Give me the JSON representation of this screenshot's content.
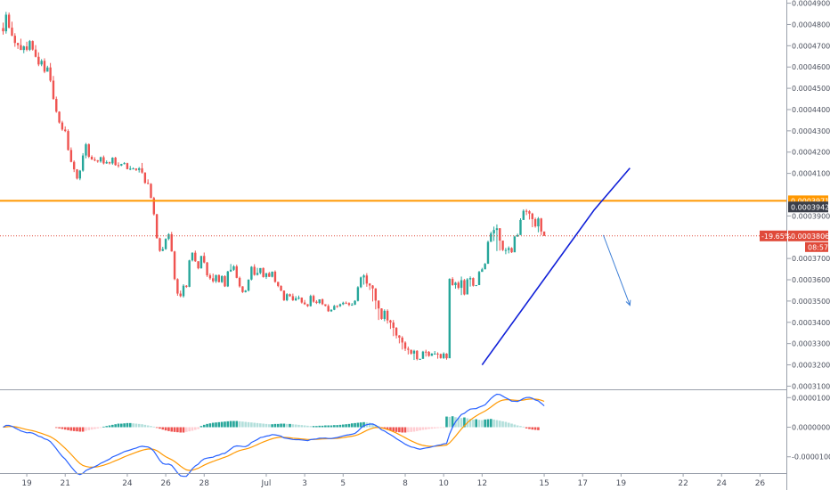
{
  "chart_data": {
    "type": "candlestick",
    "y_axis": {
      "range": [
        0.0003085,
        0.0004915
      ],
      "ticks": [
        "0.00049000",
        "0.00048000",
        "0.00047000",
        "0.00046000",
        "0.00045000",
        "0.00044000",
        "0.00043000",
        "0.00042000",
        "0.00041000",
        "0.00039000",
        "0.00037000",
        "0.00036000",
        "0.00035000",
        "0.00034000",
        "0.00033000",
        "0.00032000",
        "0.00031000"
      ],
      "tick_values": [
        0.00049,
        0.00048,
        0.00047,
        0.00046,
        0.00045,
        0.00044,
        0.00043,
        0.00042,
        0.00041,
        0.00039,
        0.00037,
        0.00036,
        0.00035,
        0.00034,
        0.00033,
        0.00032,
        0.00031
      ]
    },
    "x_axis": {
      "ticks": [
        "19",
        "21",
        "24",
        "26",
        "28",
        "Jul",
        "3",
        "5",
        "8",
        "10",
        "12",
        "15",
        "17",
        "19",
        "22",
        "24",
        "26"
      ],
      "tick_bars": [
        8,
        21,
        42,
        55,
        68,
        89,
        102,
        115,
        136,
        149,
        162,
        183,
        196,
        209,
        230,
        243,
        256
      ]
    },
    "candles": {
      "o": [
        0.0004783,
        0.0004768,
        0.0004846,
        0.0004785,
        0.0004747,
        0.0004713,
        0.0004703,
        0.000468,
        0.0004697,
        0.0004681,
        0.0004722,
        0.0004682,
        0.0004648,
        0.0004612,
        0.0004629,
        0.0004578,
        0.0004598,
        0.0004536,
        0.000445,
        0.000439,
        0.0004339,
        0.0004306,
        0.0004299,
        0.000421,
        0.0004154,
        0.0004119,
        0.0004076,
        0.0004113,
        0.0004184,
        0.0004237,
        0.0004178,
        0.0004165,
        0.0004161,
        0.0004156,
        0.0004176,
        0.0004147,
        0.0004153,
        0.0004147,
        0.0004174,
        0.0004139,
        0.0004137,
        0.0004144,
        0.0004148,
        0.000412,
        0.0004122,
        0.0004123,
        0.0004116,
        0.0004124,
        0.0004104,
        0.0004055,
        0.0004051,
        0.0003984,
        0.0003908,
        0.0003795,
        0.0003736,
        0.0003744,
        0.0003792,
        0.0003814,
        0.0003733,
        0.0003603,
        0.0003535,
        0.0003523,
        0.0003572,
        0.0003567,
        0.0003691,
        0.0003727,
        0.0003687,
        0.0003654,
        0.0003712,
        0.0003681,
        0.0003621,
        0.0003607,
        0.0003593,
        0.0003622,
        0.0003589,
        0.0003617,
        0.0003569,
        0.0003639,
        0.0003647,
        0.0003663,
        0.0003609,
        0.0003569,
        0.0003542,
        0.0003549,
        0.0003601,
        0.0003661,
        0.0003623,
        0.0003632,
        0.0003655,
        0.0003613,
        0.0003631,
        0.0003614,
        0.0003638,
        0.000359,
        0.0003571,
        0.0003549,
        0.0003504,
        0.0003532,
        0.0003523,
        0.0003504,
        0.0003513,
        0.0003516,
        0.0003493,
        0.0003485,
        0.0003476,
        0.0003524,
        0.0003497,
        0.0003491,
        0.0003508,
        0.0003485,
        0.0003477,
        0.0003452,
        0.0003459,
        0.0003477,
        0.0003476,
        0.0003485,
        0.0003492,
        0.000349,
        0.0003482,
        0.0003483,
        0.0003501,
        0.0003565,
        0.0003611,
        0.000362,
        0.0003582,
        0.0003573,
        0.0003559,
        0.0003502,
        0.0003465,
        0.0003416,
        0.0003454,
        0.0003409,
        0.0003399,
        0.0003374,
        0.0003338,
        0.0003328,
        0.0003305,
        0.0003276,
        0.0003271,
        0.0003253,
        0.0003266,
        0.0003227,
        0.0003228,
        0.0003262,
        0.0003261,
        0.0003242,
        0.0003253,
        0.0003253,
        0.0003251,
        0.0003232,
        0.0003253,
        0.0003231,
        0.0003604,
        0.0003575,
        0.0003586,
        0.0003562,
        0.0003598,
        0.0003531,
        0.0003602,
        0.0003608,
        0.0003572,
        0.0003575,
        0.0003637,
        0.0003649,
        0.0003675,
        0.0003778,
        0.0003818,
        0.0003834,
        0.0003842,
        0.0003784,
        0.000374,
        0.000374,
        0.0003749,
        0.0003729,
        0.0003803,
        0.000381,
        0.0003881,
        0.0003924,
        0.0003922,
        0.0003911,
        0.0003885,
        0.0003851,
        0.0003888,
        0.0003827
      ],
      "h": [
        0.0004809,
        0.0004859,
        0.0004856,
        0.0004813,
        0.0004759,
        0.0004714,
        0.0004733,
        0.0004701,
        0.0004719,
        0.0004727,
        0.0004725,
        0.0004703,
        0.0004669,
        0.0004637,
        0.0004641,
        0.0004606,
        0.0004619,
        0.0004558,
        0.0004461,
        0.0004392,
        0.0004347,
        0.0004321,
        0.0004307,
        0.0004222,
        0.0004161,
        0.000412,
        0.0004116,
        0.0004195,
        0.0004243,
        0.0004241,
        0.0004185,
        0.0004176,
        0.0004163,
        0.0004179,
        0.0004184,
        0.0004161,
        0.0004155,
        0.0004176,
        0.0004178,
        0.0004152,
        0.0004145,
        0.0004153,
        0.000415,
        0.0004135,
        0.0004128,
        0.0004124,
        0.000413,
        0.0004149,
        0.0004105,
        0.0004072,
        0.0004054,
        0.000399,
        0.000391,
        0.0003798,
        0.0003755,
        0.0003795,
        0.0003819,
        0.0003825,
        0.0003736,
        0.0003607,
        0.0003549,
        0.0003579,
        0.0003575,
        0.0003694,
        0.0003729,
        0.0003737,
        0.0003687,
        0.0003712,
        0.0003728,
        0.0003684,
        0.000363,
        0.0003629,
        0.0003624,
        0.0003625,
        0.0003621,
        0.0003621,
        0.0003642,
        0.0003674,
        0.0003669,
        0.0003671,
        0.0003615,
        0.000357,
        0.0003552,
        0.0003601,
        0.0003664,
        0.0003673,
        0.0003656,
        0.0003655,
        0.0003658,
        0.0003632,
        0.0003637,
        0.0003639,
        0.0003644,
        0.000359,
        0.0003574,
        0.000355,
        0.0003537,
        0.0003535,
        0.0003535,
        0.0003523,
        0.0003526,
        0.0003517,
        0.0003505,
        0.0003486,
        0.000353,
        0.000353,
        0.0003504,
        0.0003508,
        0.0003512,
        0.0003485,
        0.0003485,
        0.0003461,
        0.0003482,
        0.000348,
        0.0003488,
        0.0003497,
        0.0003498,
        0.0003494,
        0.0003491,
        0.0003504,
        0.000357,
        0.0003615,
        0.0003626,
        0.0003631,
        0.0003584,
        0.0003575,
        0.0003561,
        0.0003503,
        0.0003466,
        0.0003461,
        0.0003461,
        0.0003412,
        0.0003411,
        0.0003378,
        0.000334,
        0.0003335,
        0.0003311,
        0.0003286,
        0.0003271,
        0.0003271,
        0.0003269,
        0.0003229,
        0.0003266,
        0.0003271,
        0.0003265,
        0.0003255,
        0.0003265,
        0.0003259,
        0.0003253,
        0.0003259,
        0.0003255,
        0.0003607,
        0.0003612,
        0.000359,
        0.0003593,
        0.0003615,
        0.0003604,
        0.0003608,
        0.0003616,
        0.0003611,
        0.0003575,
        0.0003642,
        0.0003656,
        0.0003679,
        0.0003784,
        0.0003826,
        0.000385,
        0.000386,
        0.0003843,
        0.0003784,
        0.000375,
        0.0003757,
        0.0003753,
        0.0003807,
        0.0003817,
        0.0003889,
        0.0003931,
        0.0003932,
        0.0003927,
        0.0003915,
        0.0003892,
        0.0003895,
        0.0003891
      ],
      "l": [
        0.0004752,
        0.0004757,
        0.0004781,
        0.0004745,
        0.0004695,
        0.0004685,
        0.000468,
        0.0004665,
        0.0004674,
        0.0004675,
        0.0004677,
        0.0004645,
        0.0004604,
        0.0004604,
        0.0004571,
        0.0004582,
        0.0004529,
        0.0004446,
        0.0004385,
        0.0004334,
        0.00043,
        0.0004294,
        0.0004207,
        0.0004152,
        0.0004106,
        0.0004071,
        0.0004068,
        0.0004108,
        0.0004171,
        0.0004172,
        0.0004164,
        0.0004157,
        0.000415,
        0.000415,
        0.0004142,
        0.0004145,
        0.0004142,
        0.0004141,
        0.0004136,
        0.0004127,
        0.0004134,
        0.0004142,
        0.0004119,
        0.0004115,
        0.0004119,
        0.0004111,
        0.0004104,
        0.0004099,
        0.0004051,
        0.0004049,
        0.0003983,
        0.0003902,
        0.0003794,
        0.0003731,
        0.0003734,
        0.0003741,
        0.0003786,
        0.0003732,
        0.0003598,
        0.0003525,
        0.0003518,
        0.0003516,
        0.0003562,
        0.0003565,
        0.0003686,
        0.0003684,
        0.0003649,
        0.0003652,
        0.0003677,
        0.0003613,
        0.00036,
        0.0003586,
        0.0003585,
        0.0003587,
        0.0003585,
        0.0003566,
        0.0003566,
        0.0003637,
        0.0003642,
        0.0003607,
        0.0003563,
        0.0003538,
        0.000354,
        0.0003545,
        0.0003597,
        0.0003619,
        0.000362,
        0.0003626,
        0.000361,
        0.0003604,
        0.0003613,
        0.0003611,
        0.0003586,
        0.0003565,
        0.0003546,
        0.00035,
        0.0003499,
        0.000352,
        0.00035,
        0.00035,
        0.0003507,
        0.0003488,
        0.0003482,
        0.0003472,
        0.0003474,
        0.0003492,
        0.0003486,
        0.0003486,
        0.0003481,
        0.0003475,
        0.0003449,
        0.0003449,
        0.0003457,
        0.0003468,
        0.0003472,
        0.0003481,
        0.0003486,
        0.0003476,
        0.0003478,
        0.0003481,
        0.0003498,
        0.0003561,
        0.0003577,
        0.0003567,
        0.0003552,
        0.0003498,
        0.0003461,
        0.0003411,
        0.0003412,
        0.0003405,
        0.0003394,
        0.0003369,
        0.0003335,
        0.0003324,
        0.0003301,
        0.0003272,
        0.0003265,
        0.0003249,
        0.0003248,
        0.0003223,
        0.0003221,
        0.0003224,
        0.0003254,
        0.0003239,
        0.0003238,
        0.0003248,
        0.0003248,
        0.0003229,
        0.0003229,
        0.0003228,
        0.0003224,
        0.000357,
        0.0003572,
        0.0003558,
        0.0003555,
        0.0003528,
        0.0003527,
        0.0003595,
        0.0003568,
        0.0003568,
        0.000357,
        0.0003632,
        0.0003645,
        0.0003671,
        0.0003772,
        0.0003812,
        0.0003782,
        0.0003735,
        0.0003737,
        0.0003735,
        0.000372,
        0.0003724,
        0.0003726,
        0.0003798,
        0.0003802,
        0.0003876,
        0.0003917,
        0.0003904,
        0.0003883,
        0.0003847,
        0.0003845,
        0.0003823,
        0.000381
      ],
      "c": [
        0.0004768,
        0.0004846,
        0.0004785,
        0.0004747,
        0.0004713,
        0.0004703,
        0.000468,
        0.0004697,
        0.0004681,
        0.0004722,
        0.0004682,
        0.0004648,
        0.0004612,
        0.0004629,
        0.0004578,
        0.0004598,
        0.0004536,
        0.000445,
        0.000439,
        0.0004339,
        0.0004306,
        0.0004299,
        0.000421,
        0.0004154,
        0.0004119,
        0.0004076,
        0.0004113,
        0.0004184,
        0.0004237,
        0.0004178,
        0.0004165,
        0.0004161,
        0.0004156,
        0.0004176,
        0.0004147,
        0.0004153,
        0.0004147,
        0.0004174,
        0.0004139,
        0.0004137,
        0.0004144,
        0.0004148,
        0.000412,
        0.0004122,
        0.0004123,
        0.0004116,
        0.0004124,
        0.0004104,
        0.0004055,
        0.0004051,
        0.0003984,
        0.0003908,
        0.0003795,
        0.0003736,
        0.0003744,
        0.0003792,
        0.0003814,
        0.0003733,
        0.0003603,
        0.0003535,
        0.0003523,
        0.0003572,
        0.0003567,
        0.0003691,
        0.0003727,
        0.0003687,
        0.0003654,
        0.0003712,
        0.0003681,
        0.0003621,
        0.0003607,
        0.0003593,
        0.0003622,
        0.0003589,
        0.0003617,
        0.0003569,
        0.0003639,
        0.0003647,
        0.0003663,
        0.0003609,
        0.0003569,
        0.0003542,
        0.0003549,
        0.0003601,
        0.0003661,
        0.0003623,
        0.0003632,
        0.0003655,
        0.0003613,
        0.0003631,
        0.0003614,
        0.0003638,
        0.000359,
        0.0003571,
        0.0003549,
        0.0003504,
        0.0003532,
        0.0003523,
        0.0003504,
        0.0003513,
        0.0003516,
        0.0003493,
        0.0003485,
        0.0003476,
        0.0003524,
        0.0003497,
        0.0003491,
        0.0003508,
        0.0003485,
        0.0003477,
        0.0003452,
        0.0003459,
        0.0003477,
        0.0003476,
        0.0003485,
        0.0003492,
        0.000349,
        0.0003482,
        0.0003483,
        0.0003501,
        0.0003565,
        0.0003611,
        0.000362,
        0.0003582,
        0.0003573,
        0.0003559,
        0.0003502,
        0.0003465,
        0.0003416,
        0.0003454,
        0.0003409,
        0.0003399,
        0.0003374,
        0.0003338,
        0.0003328,
        0.0003305,
        0.0003276,
        0.0003271,
        0.0003253,
        0.0003266,
        0.0003227,
        0.0003228,
        0.0003262,
        0.0003261,
        0.0003242,
        0.0003253,
        0.0003253,
        0.0003251,
        0.0003232,
        0.0003253,
        0.0003231,
        0.0003604,
        0.0003575,
        0.0003586,
        0.0003562,
        0.0003598,
        0.0003531,
        0.0003602,
        0.0003608,
        0.0003572,
        0.0003575,
        0.0003637,
        0.0003649,
        0.0003675,
        0.0003778,
        0.0003818,
        0.0003834,
        0.0003842,
        0.0003784,
        0.000374,
        0.000374,
        0.0003749,
        0.0003729,
        0.0003803,
        0.000381,
        0.0003881,
        0.0003924,
        0.0003922,
        0.0003911,
        0.0003885,
        0.0003851,
        0.0003888,
        0.0003827,
        0.0003806
      ]
    },
    "levels": [
      {
        "value": 0.00039711,
        "label": "0.00039711",
        "color": "#ff9800"
      },
      {
        "value": 0.00039422,
        "label": "0.00039422",
        "color": "#3b3f4a"
      },
      {
        "value": 0.00038061,
        "label": "0.00038061",
        "color": "#e04a3a"
      }
    ],
    "change_label": "-19.65%",
    "countdown_label": "08:57",
    "trendline": {
      "from": [
        162,
        0.00032
      ],
      "to": [
        200,
        0.000393
      ],
      "color": "#1020d8"
    },
    "trendline_ext": {
      "from": [
        200,
        0.000393
      ],
      "to": [
        212,
        0.0004125
      ]
    },
    "arrow": {
      "from": [
        203,
        0.000381
      ],
      "to": [
        212,
        0.000348
      ],
      "color": "#3d7fd6"
    },
    "macd": {
      "y_ticks": [
        "0.00001000",
        "0.00000000",
        "-0.00001000"
      ],
      "y_tick_values": [
        1e-05,
        0.0,
        -1e-05
      ],
      "range": [
        -1.55e-05,
        1.25e-05
      ],
      "hist": [
        0.0,
        0.0,
        0.0,
        0.0,
        0.0,
        0.0,
        0.0,
        0.0,
        0.0,
        0.0,
        0.0,
        0.0,
        0.0,
        0.0,
        0.0,
        0.0,
        0.0,
        0.0,
        -2e-07,
        -4e-07,
        -6e-07,
        -8e-07,
        -1e-06,
        -1.2e-06,
        -1.3e-06,
        -1.4e-06,
        -1.5e-06,
        -1.5e-06,
        -1.2e-06,
        -1e-06,
        -8e-07,
        -6e-07,
        -4e-07,
        -2e-07,
        2e-07,
        4e-07,
        6e-07,
        8e-07,
        1e-06,
        1.2e-06,
        1.2e-06,
        1.3e-06,
        1.4e-06,
        1.4e-06,
        1.3e-06,
        1.2e-06,
        1.1e-06,
        1e-06,
        8e-07,
        6e-07,
        4e-07,
        2e-07,
        -2e-07,
        -5e-07,
        -8e-07,
        -1.1e-06,
        -1.3e-06,
        -1.5e-06,
        -1.6e-06,
        -1.7e-06,
        -1.8e-06,
        -1.8e-06,
        -1.6e-06,
        -1.4e-06,
        -1.2e-06,
        -9e-07,
        -6e-07,
        4e-07,
        8e-07,
        1.1e-06,
        1.3e-06,
        1.5e-06,
        1.6e-06,
        1.7e-06,
        1.8e-06,
        1.9e-06,
        2e-06,
        2.1e-06,
        2.1e-06,
        2.1e-06,
        2e-06,
        1.9e-06,
        1.8e-06,
        1.7e-06,
        1.6e-06,
        1.5e-06,
        1.4e-06,
        1.3e-06,
        1.2e-06,
        1.1e-06,
        1e-06,
        1e-06,
        1.1e-06,
        1.1e-06,
        1.2e-06,
        1.2e-06,
        1.1e-06,
        1.1e-06,
        1e-06,
        9e-07,
        8e-07,
        7e-07,
        6e-07,
        5e-07,
        4e-07,
        4e-07,
        4e-07,
        5e-07,
        5e-07,
        6e-07,
        6e-07,
        6e-07,
        7e-07,
        7e-07,
        8e-07,
        9e-07,
        1e-06,
        1.1e-06,
        1.3e-06,
        1.4e-06,
        1.5e-06,
        1.6e-06,
        1.7e-06,
        1.6e-06,
        1.5e-06,
        1.2e-06,
        8e-07,
        4e-07,
        -3e-07,
        -6e-07,
        -9e-07,
        -1.2e-06,
        -1.4e-06,
        -1.6e-06,
        -1.7e-06,
        -1.8e-06,
        -1.8e-06,
        -1.7e-06,
        -1.6e-06,
        -1.5e-06,
        -1.3e-06,
        -1.1e-06,
        -9e-07,
        -8e-07,
        -6e-07,
        -5e-07,
        -4e-07,
        -3e-07,
        -2e-07,
        -1e-07,
        3.6e-06,
        3.5e-06,
        3.7e-06,
        3.4e-06,
        3.2e-06,
        3.1e-06,
        3.3e-06,
        3e-06,
        2.8e-06,
        2.6e-06,
        2.7e-06,
        2.5e-06,
        2.4e-06,
        2.6e-06,
        2.7e-06,
        2.8e-06,
        2.6e-06,
        2.4e-06,
        2.2e-06,
        2e-06,
        1.8e-06,
        1.5e-06,
        1.2e-06,
        9e-07,
        6e-07,
        4e-07,
        2e-07,
        -4e-07,
        -6e-07,
        -8e-07,
        -9e-07,
        -1e-06
      ]
    }
  }
}
